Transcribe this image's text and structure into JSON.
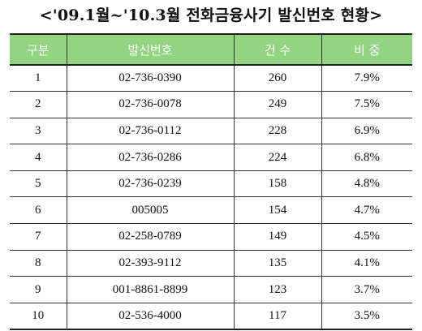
{
  "title": "<'09.1월~'10.3월 전화금융사기 발신번호 현황>",
  "colors": {
    "header_bg": "#93d483",
    "header_text": "#ffffff"
  },
  "table": {
    "headers": [
      "구분",
      "발신번호",
      "건 수",
      "비 중"
    ],
    "rows": [
      [
        "1",
        "02-736-0390",
        "260",
        "7.9%"
      ],
      [
        "2",
        "02-736-0078",
        "249",
        "7.5%"
      ],
      [
        "3",
        "02-736-0112",
        "228",
        "6.9%"
      ],
      [
        "4",
        "02-736-0286",
        "224",
        "6.8%"
      ],
      [
        "5",
        "02-736-0239",
        "158",
        "4.8%"
      ],
      [
        "6",
        "005005",
        "154",
        "4.7%"
      ],
      [
        "7",
        "02-258-0789",
        "149",
        "4.5%"
      ],
      [
        "8",
        "02-393-9112",
        "135",
        "4.1%"
      ],
      [
        "9",
        "001-8861-8899",
        "123",
        "3.7%"
      ],
      [
        "10",
        "02-536-4000",
        "117",
        "3.5%"
      ]
    ]
  }
}
